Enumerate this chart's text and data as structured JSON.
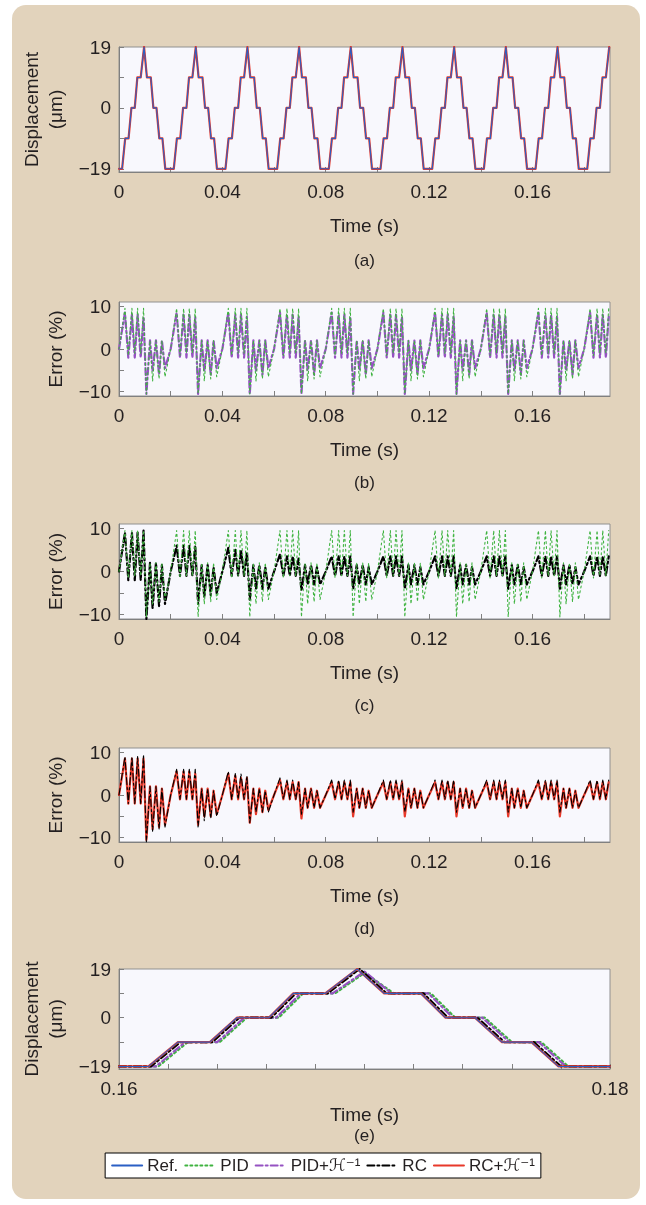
{
  "chart_data": [
    {
      "type": "line",
      "xlabel": "Time (s)",
      "ylabel": "Displacement (μm)",
      "annotations": [
        "(a)"
      ],
      "xlim": [
        0,
        0.19
      ],
      "xticks": [
        0,
        {
          "value": 0.02,
          "label": null
        },
        0.04,
        {
          "value": 0.06,
          "label": null
        },
        0.08,
        {
          "value": 0.1,
          "label": null
        },
        0.12,
        {
          "value": 0.14,
          "label": null
        },
        0.16,
        {
          "value": 0.18,
          "label": null
        }
      ],
      "ylim": [
        -20,
        19
      ],
      "yticks": [
        -19,
        {
          "value": -9.5,
          "label": null
        },
        0,
        {
          "value": 9.5,
          "label": null
        },
        19
      ],
      "x": [
        0,
        0.0012,
        0.0024,
        0.0037,
        0.0048,
        0.0061,
        0.0071,
        0.0084,
        0.0097,
        0.0108,
        0.0123,
        0.0133,
        0.0145,
        0.0156,
        0.0168,
        0.0179,
        0.0212,
        0.0224,
        0.0237,
        0.0248,
        0.0261,
        0.0271,
        0.0284,
        0.0297,
        0.0308,
        0.0323,
        0.0333,
        0.0345,
        0.0356,
        0.0368,
        0.0379,
        0.0412,
        0.0424,
        0.0437,
        0.0448,
        0.0461,
        0.0471,
        0.0484,
        0.0497,
        0.0508,
        0.0523,
        0.0533,
        0.0545,
        0.0556,
        0.0568,
        0.0579,
        0.0612,
        0.0624,
        0.0637,
        0.0648,
        0.0661,
        0.0671,
        0.0684,
        0.0697,
        0.0708,
        0.0723,
        0.0733,
        0.0745,
        0.0756,
        0.0768,
        0.0779,
        0.0812,
        0.0824,
        0.0837,
        0.0848,
        0.0861,
        0.0871,
        0.0884,
        0.0897,
        0.0908,
        0.0923,
        0.0933,
        0.0945,
        0.0956,
        0.0968,
        0.0979,
        0.1012,
        0.1024,
        0.1037,
        0.1048,
        0.1061,
        0.1071,
        0.1084,
        0.1097,
        0.1108,
        0.1123,
        0.1133,
        0.1145,
        0.1156,
        0.1168,
        0.1179,
        0.1212,
        0.1224,
        0.1237,
        0.1248,
        0.1261,
        0.1271,
        0.1284,
        0.1297,
        0.1308,
        0.1323,
        0.1333,
        0.1345,
        0.1356,
        0.1368,
        0.1379,
        0.1412,
        0.1424,
        0.1437,
        0.1448,
        0.1461,
        0.1471,
        0.1484,
        0.1497,
        0.1508,
        0.1523,
        0.1533,
        0.1545,
        0.1556,
        0.1568,
        0.1579,
        0.1612,
        0.1624,
        0.1637,
        0.1648,
        0.1661,
        0.1671,
        0.1684,
        0.1697,
        0.1708,
        0.1723,
        0.1733,
        0.1745,
        0.1756,
        0.1768,
        0.1779,
        0.1812,
        0.1824,
        0.1837,
        0.1848,
        0.1861,
        0.1871,
        0.1884,
        0.1897
      ],
      "series": [
        {
          "color": "#2a5fc4",
          "line_style": "solid",
          "values": [
            -19,
            -19,
            -9.5,
            -9.5,
            0,
            0,
            9.5,
            9.5,
            19,
            9.5,
            9.5,
            0,
            0,
            -9.5,
            -9.5,
            -19,
            -19,
            -9.5,
            -9.5,
            0,
            0,
            9.5,
            9.5,
            19,
            9.5,
            9.5,
            0,
            0,
            -9.5,
            -9.5,
            -19,
            -19,
            -9.5,
            -9.5,
            0,
            0,
            9.5,
            9.5,
            19,
            9.5,
            9.5,
            0,
            0,
            -9.5,
            -9.5,
            -19,
            -19,
            -9.5,
            -9.5,
            0,
            0,
            9.5,
            9.5,
            19,
            9.5,
            9.5,
            0,
            0,
            -9.5,
            -9.5,
            -19,
            -19,
            -9.5,
            -9.5,
            0,
            0,
            9.5,
            9.5,
            19,
            9.5,
            9.5,
            0,
            0,
            -9.5,
            -9.5,
            -19,
            -19,
            -9.5,
            -9.5,
            0,
            0,
            9.5,
            9.5,
            19,
            9.5,
            9.5,
            0,
            0,
            -9.5,
            -9.5,
            -19,
            -19,
            -9.5,
            -9.5,
            0,
            0,
            9.5,
            9.5,
            19,
            9.5,
            9.5,
            0,
            0,
            -9.5,
            -9.5,
            -19,
            -19,
            -9.5,
            -9.5,
            0,
            0,
            9.5,
            9.5,
            19,
            9.5,
            9.5,
            0,
            0,
            -9.5,
            -9.5,
            -19,
            -19,
            -9.5,
            -9.5,
            0,
            0,
            9.5,
            9.5,
            19,
            9.5,
            9.5,
            0,
            0,
            -9.5,
            -9.5,
            -19,
            -19,
            -9.5,
            -9.5,
            0,
            0,
            9.5,
            9.5,
            19
          ]
        },
        {
          "color": "#e8392a",
          "line_style": "solid",
          "values": [
            -19,
            -19,
            -9.5,
            -9.5,
            0,
            0,
            9.5,
            9.5,
            19,
            9.5,
            9.5,
            0,
            0,
            -9.5,
            -9.5,
            -19,
            -19,
            -9.5,
            -9.5,
            0,
            0,
            9.5,
            9.5,
            19,
            9.5,
            9.5,
            0,
            0,
            -9.5,
            -9.5,
            -19,
            -19,
            -9.5,
            -9.5,
            0,
            0,
            9.5,
            9.5,
            19,
            9.5,
            9.5,
            0,
            0,
            -9.5,
            -9.5,
            -19,
            -19,
            -9.5,
            -9.5,
            0,
            0,
            9.5,
            9.5,
            19,
            9.5,
            9.5,
            0,
            0,
            -9.5,
            -9.5,
            -19,
            -19,
            -9.5,
            -9.5,
            0,
            0,
            9.5,
            9.5,
            19,
            9.5,
            9.5,
            0,
            0,
            -9.5,
            -9.5,
            -19,
            -19,
            -9.5,
            -9.5,
            0,
            0,
            9.5,
            9.5,
            19,
            9.5,
            9.5,
            0,
            0,
            -9.5,
            -9.5,
            -19,
            -19,
            -9.5,
            -9.5,
            0,
            0,
            9.5,
            9.5,
            19,
            9.5,
            9.5,
            0,
            0,
            -9.5,
            -9.5,
            -19,
            -19,
            -9.5,
            -9.5,
            0,
            0,
            9.5,
            9.5,
            19,
            9.5,
            9.5,
            0,
            0,
            -9.5,
            -9.5,
            -19,
            -19,
            -9.5,
            -9.5,
            0,
            0,
            9.5,
            9.5,
            19,
            9.5,
            9.5,
            0,
            0,
            -9.5,
            -9.5,
            -19,
            -19,
            -9.5,
            -9.5,
            0,
            0,
            9.5,
            9.5,
            19
          ]
        }
      ]
    },
    {
      "type": "line",
      "xlabel": "Time (s)",
      "ylabel": "Error (%)",
      "annotations": [
        "(b)"
      ],
      "xlim": [
        0,
        0.19
      ],
      "xticks": [
        0,
        {
          "value": 0.02,
          "label": null
        },
        0.04,
        {
          "value": 0.06,
          "label": null
        },
        0.08,
        {
          "value": 0.1,
          "label": null
        },
        0.12,
        {
          "value": 0.14,
          "label": null
        },
        0.16,
        {
          "value": 0.18,
          "label": null
        }
      ],
      "ylim": [
        -11,
        11
      ],
      "yticks": [
        -10,
        {
          "value": -5,
          "label": null
        },
        0,
        {
          "value": 5,
          "label": null
        },
        10
      ],
      "x": [
        0,
        0.0023,
        0.0036,
        0.005,
        0.0061,
        0.0072,
        0.0084,
        0.0095,
        0.0106,
        0.012,
        0.013,
        0.0143,
        0.0155,
        0.0166,
        0.0178,
        0.02,
        0.0223,
        0.0236,
        0.025,
        0.0261,
        0.0272,
        0.0284,
        0.0295,
        0.0306,
        0.032,
        0.033,
        0.0343,
        0.0355,
        0.0366,
        0.0378,
        0.04,
        0.0423,
        0.0436,
        0.045,
        0.0461,
        0.0472,
        0.0484,
        0.0495,
        0.0506,
        0.052,
        0.053,
        0.0543,
        0.0555,
        0.0566,
        0.0578,
        0.06,
        0.0623,
        0.0636,
        0.065,
        0.0661,
        0.0672,
        0.0684,
        0.0695,
        0.0706,
        0.072,
        0.073,
        0.0743,
        0.0755,
        0.0766,
        0.0778,
        0.08,
        0.0823,
        0.0836,
        0.085,
        0.0861,
        0.0872,
        0.0884,
        0.0895,
        0.0906,
        0.092,
        0.093,
        0.0943,
        0.0955,
        0.0966,
        0.0978,
        0.1,
        0.1023,
        0.1036,
        0.105,
        0.1061,
        0.1072,
        0.1084,
        0.1095,
        0.1106,
        0.112,
        0.113,
        0.1143,
        0.1155,
        0.1166,
        0.1178,
        0.12,
        0.1223,
        0.1236,
        0.125,
        0.1261,
        0.1272,
        0.1284,
        0.1295,
        0.1306,
        0.132,
        0.133,
        0.1343,
        0.1355,
        0.1366,
        0.1378,
        0.14,
        0.1423,
        0.1436,
        0.145,
        0.1461,
        0.1472,
        0.1484,
        0.1495,
        0.1506,
        0.152,
        0.153,
        0.1543,
        0.1555,
        0.1566,
        0.1578,
        0.16,
        0.1623,
        0.1636,
        0.165,
        0.1661,
        0.1672,
        0.1684,
        0.1695,
        0.1706,
        0.172,
        0.173,
        0.1743,
        0.1755,
        0.1766,
        0.1778,
        0.18,
        0.1823,
        0.1836,
        0.185,
        0.1861,
        0.1872,
        0.1884,
        0.1895
      ],
      "series": [
        {
          "color": "#3fb340",
          "line_style": "dotted",
          "values": [
            0,
            9.5,
            -1.5,
            9.5,
            -1,
            9.5,
            -1,
            9.5,
            -10.5,
            2,
            -7.5,
            2,
            -7,
            2,
            -6.5,
            0,
            9.5,
            -1.5,
            9.5,
            -1,
            9.5,
            -1,
            9.5,
            -10.5,
            2,
            -7.5,
            2,
            -7,
            2,
            -6.5,
            0,
            9.5,
            -1.5,
            9.5,
            -1,
            9.5,
            -1,
            9.5,
            -10.5,
            2,
            -7.5,
            2,
            -7,
            2,
            -6.5,
            0,
            9.5,
            -1.5,
            9.5,
            -1,
            9.5,
            -1,
            9.5,
            -10.5,
            2,
            -7.5,
            2,
            -7,
            2,
            -6.5,
            0,
            9.5,
            -1.5,
            9.5,
            -1,
            9.5,
            -1,
            9.5,
            -10.5,
            2,
            -7.5,
            2,
            -7,
            2,
            -6.5,
            0,
            9.5,
            -1.5,
            9.5,
            -1,
            9.5,
            -1,
            9.5,
            -10.5,
            2,
            -7.5,
            2,
            -7,
            2,
            -6.5,
            0,
            9.5,
            -1.5,
            9.5,
            -1,
            9.5,
            -1,
            9.5,
            -10.5,
            2,
            -7.5,
            2,
            -7,
            2,
            -6.5,
            0,
            9.5,
            -1.5,
            9.5,
            -1,
            9.5,
            -1,
            9.5,
            -10.5,
            2,
            -7.5,
            2,
            -7,
            2,
            -6.5,
            0,
            9.5,
            -1.5,
            9.5,
            -1,
            9.5,
            -1,
            9.5,
            -10.5,
            2,
            -7.5,
            2,
            -7,
            2,
            -6.5,
            0,
            9.5,
            -1.5,
            9.5,
            -1,
            9.5,
            -1,
            9.5
          ]
        },
        {
          "color": "#9552c2",
          "line_style": "dashed",
          "values": [
            0,
            8.5,
            -2,
            8,
            -2,
            8,
            -2,
            7.5,
            -10.5,
            2,
            -5,
            2,
            -6,
            2,
            -4.5,
            0,
            8.5,
            -2,
            8,
            -2,
            8,
            -2,
            7.5,
            -10.5,
            2,
            -5,
            2,
            -6,
            2,
            -4.5,
            0,
            8.5,
            -2,
            8,
            -2,
            8,
            -2,
            7.5,
            -10.5,
            2,
            -5,
            2,
            -6,
            2,
            -4.5,
            0,
            8.5,
            -2,
            8,
            -2,
            8,
            -2,
            7.5,
            -10.5,
            2,
            -5,
            2,
            -6,
            2,
            -4.5,
            0,
            8.5,
            -2,
            8,
            -2,
            8,
            -2,
            7.5,
            -10.5,
            2,
            -5,
            2,
            -6,
            2,
            -4.5,
            0,
            8.5,
            -2,
            8,
            -2,
            8,
            -2,
            7.5,
            -10.5,
            2,
            -5,
            2,
            -6,
            2,
            -4.5,
            0,
            8.5,
            -2,
            8,
            -2,
            8,
            -2,
            7.5,
            -10.5,
            2,
            -5,
            2,
            -6,
            2,
            -4.5,
            0,
            8.5,
            -2,
            8,
            -2,
            8,
            -2,
            7.5,
            -10.5,
            2,
            -5,
            2,
            -6,
            2,
            -4.5,
            0,
            8.5,
            -2,
            8,
            -2,
            8,
            -2,
            7.5,
            -10.5,
            2,
            -5,
            2,
            -6,
            2,
            -4.5,
            0,
            8.5,
            -2,
            8,
            -2,
            8,
            -2,
            7.5
          ]
        }
      ]
    },
    {
      "type": "line",
      "xlabel": "Time (s)",
      "ylabel": "Error (%)",
      "annotations": [
        "(c)"
      ],
      "xlim": [
        0,
        0.19
      ],
      "xticks": [
        0,
        {
          "value": 0.02,
          "label": null
        },
        0.04,
        {
          "value": 0.06,
          "label": null
        },
        0.08,
        {
          "value": 0.1,
          "label": null
        },
        0.12,
        {
          "value": 0.14,
          "label": null
        },
        0.16,
        {
          "value": 0.18,
          "label": null
        }
      ],
      "ylim": [
        -11,
        11
      ],
      "yticks": [
        -10,
        {
          "value": -5,
          "label": null
        },
        0,
        {
          "value": 5,
          "label": null
        },
        10
      ],
      "x": [
        0,
        0.0023,
        0.0036,
        0.005,
        0.0061,
        0.0072,
        0.0084,
        0.0095,
        0.0106,
        0.012,
        0.013,
        0.0143,
        0.0155,
        0.0166,
        0.0178,
        0.02,
        0.0223,
        0.0236,
        0.025,
        0.0261,
        0.0272,
        0.0284,
        0.0295,
        0.0306,
        0.032,
        0.033,
        0.0343,
        0.0355,
        0.0366,
        0.0378,
        0.04,
        0.0423,
        0.0436,
        0.045,
        0.0461,
        0.0472,
        0.0484,
        0.0495,
        0.0506,
        0.052,
        0.053,
        0.0543,
        0.0555,
        0.0566,
        0.0578,
        0.06,
        0.0623,
        0.0636,
        0.065,
        0.0661,
        0.0672,
        0.0684,
        0.0695,
        0.0706,
        0.072,
        0.073,
        0.0743,
        0.0755,
        0.0766,
        0.0778,
        0.08,
        0.0823,
        0.0836,
        0.085,
        0.0861,
        0.0872,
        0.0884,
        0.0895,
        0.0906,
        0.092,
        0.093,
        0.0943,
        0.0955,
        0.0966,
        0.0978,
        0.1,
        0.1023,
        0.1036,
        0.105,
        0.1061,
        0.1072,
        0.1084,
        0.1095,
        0.1106,
        0.112,
        0.113,
        0.1143,
        0.1155,
        0.1166,
        0.1178,
        0.12,
        0.1223,
        0.1236,
        0.125,
        0.1261,
        0.1272,
        0.1284,
        0.1295,
        0.1306,
        0.132,
        0.133,
        0.1343,
        0.1355,
        0.1366,
        0.1378,
        0.14,
        0.1423,
        0.1436,
        0.145,
        0.1461,
        0.1472,
        0.1484,
        0.1495,
        0.1506,
        0.152,
        0.153,
        0.1543,
        0.1555,
        0.1566,
        0.1578,
        0.16,
        0.1623,
        0.1636,
        0.165,
        0.1661,
        0.1672,
        0.1684,
        0.1695,
        0.1706,
        0.172,
        0.173,
        0.1743,
        0.1755,
        0.1766,
        0.1778,
        0.18,
        0.1823,
        0.1836,
        0.185,
        0.1861,
        0.1872,
        0.1884,
        0.1895
      ],
      "series": [
        {
          "color": "#3fb340",
          "line_style": "dotted",
          "values": [
            0,
            9.5,
            -1.5,
            9.5,
            -1,
            9.5,
            -1,
            9.5,
            -10.5,
            2,
            -7.5,
            2,
            -7,
            2,
            -6.5,
            0,
            9.5,
            -1.5,
            9.5,
            -1,
            9.5,
            -1,
            9.5,
            -10.5,
            2,
            -7.5,
            2,
            -7,
            2,
            -6.5,
            0,
            9.5,
            -1.5,
            9.5,
            -1,
            9.5,
            -1,
            9.5,
            -10.5,
            2,
            -7.5,
            2,
            -7,
            2,
            -6.5,
            0,
            9.5,
            -1.5,
            9.5,
            -1,
            9.5,
            -1,
            9.5,
            -10.5,
            2,
            -7.5,
            2,
            -7,
            2,
            -6.5,
            0,
            9.5,
            -1.5,
            9.5,
            -1,
            9.5,
            -1,
            9.5,
            -10.5,
            2,
            -7.5,
            2,
            -7,
            2,
            -6.5,
            0,
            9.5,
            -1.5,
            9.5,
            -1,
            9.5,
            -1,
            9.5,
            -10.5,
            2,
            -7.5,
            2,
            -7,
            2,
            -6.5,
            0,
            9.5,
            -1.5,
            9.5,
            -1,
            9.5,
            -1,
            9.5,
            -10.5,
            2,
            -7.5,
            2,
            -7,
            2,
            -6.5,
            0,
            9.5,
            -1.5,
            9.5,
            -1,
            9.5,
            -1,
            9.5,
            -10.5,
            2,
            -7.5,
            2,
            -7,
            2,
            -6.5,
            0,
            9.5,
            -1.5,
            9.5,
            -1,
            9.5,
            -1,
            9.5,
            -10.5,
            2,
            -7.5,
            2,
            -7,
            2,
            -6.5,
            0,
            9.5,
            -1.5,
            9.5,
            -1,
            9.5,
            -1,
            9.5
          ]
        },
        {
          "color": "#000000",
          "line_style": "dashed",
          "values": [
            0,
            9,
            -2,
            9,
            -2,
            9,
            -2,
            9.5,
            -11,
            2,
            -8.5,
            2,
            -8,
            1.5,
            -7.5,
            0,
            6,
            -1,
            6,
            -1,
            6,
            -1,
            6,
            -7.5,
            1.5,
            -6,
            1.5,
            -5.5,
            1,
            -5,
            0,
            5.5,
            -1,
            5,
            -1,
            5,
            -1,
            4.5,
            -6.5,
            1.5,
            -4,
            1.5,
            -4,
            1,
            -4,
            0,
            4,
            -1,
            3.5,
            -1,
            3.5,
            -1,
            3,
            -4.5,
            1.5,
            -3,
            1.5,
            -3,
            1,
            -3,
            0,
            3.5,
            -1,
            3.5,
            -1,
            3.5,
            -1,
            3.5,
            -4,
            1.5,
            -3,
            1.5,
            -3,
            1,
            -3,
            0,
            3.5,
            -1,
            3.5,
            -1,
            3.5,
            -1,
            3.5,
            -4,
            1.5,
            -3,
            1.5,
            -3,
            1,
            -3,
            0,
            3.5,
            -1,
            3.5,
            -1,
            3.5,
            -1,
            3.5,
            -4,
            1.5,
            -3,
            1.5,
            -3,
            1,
            -3,
            0,
            3.5,
            -1,
            3.5,
            -1,
            3.5,
            -1,
            3.5,
            -4,
            1.5,
            -3,
            1.5,
            -3,
            1,
            -3,
            0,
            3.5,
            -1,
            3.5,
            -1,
            3.5,
            -1,
            3.5,
            -4,
            1.5,
            -3,
            1.5,
            -3,
            1,
            -3,
            0,
            3.5,
            -1,
            3.5,
            -1,
            3.5,
            -1,
            3.5
          ]
        }
      ]
    },
    {
      "type": "line",
      "xlabel": "Time (s)",
      "ylabel": "Error (%)",
      "annotations": [
        "(d)"
      ],
      "xlim": [
        0,
        0.19
      ],
      "xticks": [
        0,
        {
          "value": 0.02,
          "label": null
        },
        0.04,
        {
          "value": 0.06,
          "label": null
        },
        0.08,
        {
          "value": 0.1,
          "label": null
        },
        0.12,
        {
          "value": 0.14,
          "label": null
        },
        0.16,
        {
          "value": 0.18,
          "label": null
        }
      ],
      "ylim": [
        -11,
        11
      ],
      "yticks": [
        -10,
        {
          "value": -5,
          "label": null
        },
        0,
        {
          "value": 5,
          "label": null
        },
        10
      ],
      "x": [
        0,
        0.0023,
        0.0036,
        0.005,
        0.0061,
        0.0072,
        0.0084,
        0.0095,
        0.0106,
        0.012,
        0.013,
        0.0143,
        0.0155,
        0.0166,
        0.0178,
        0.02,
        0.0223,
        0.0236,
        0.025,
        0.0261,
        0.0272,
        0.0284,
        0.0295,
        0.0306,
        0.032,
        0.033,
        0.0343,
        0.0355,
        0.0366,
        0.0378,
        0.04,
        0.0423,
        0.0436,
        0.045,
        0.0461,
        0.0472,
        0.0484,
        0.0495,
        0.0506,
        0.052,
        0.053,
        0.0543,
        0.0555,
        0.0566,
        0.0578,
        0.06,
        0.0623,
        0.0636,
        0.065,
        0.0661,
        0.0672,
        0.0684,
        0.0695,
        0.0706,
        0.072,
        0.073,
        0.0743,
        0.0755,
        0.0766,
        0.0778,
        0.08,
        0.0823,
        0.0836,
        0.085,
        0.0861,
        0.0872,
        0.0884,
        0.0895,
        0.0906,
        0.092,
        0.093,
        0.0943,
        0.0955,
        0.0966,
        0.0978,
        0.1,
        0.1023,
        0.1036,
        0.105,
        0.1061,
        0.1072,
        0.1084,
        0.1095,
        0.1106,
        0.112,
        0.113,
        0.1143,
        0.1155,
        0.1166,
        0.1178,
        0.12,
        0.1223,
        0.1236,
        0.125,
        0.1261,
        0.1272,
        0.1284,
        0.1295,
        0.1306,
        0.132,
        0.133,
        0.1343,
        0.1355,
        0.1366,
        0.1378,
        0.14,
        0.1423,
        0.1436,
        0.145,
        0.1461,
        0.1472,
        0.1484,
        0.1495,
        0.1506,
        0.152,
        0.153,
        0.1543,
        0.1555,
        0.1566,
        0.1578,
        0.16,
        0.1623,
        0.1636,
        0.165,
        0.1661,
        0.1672,
        0.1684,
        0.1695,
        0.1706,
        0.172,
        0.173,
        0.1743,
        0.1755,
        0.1766,
        0.1778,
        0.18,
        0.1823,
        0.1836,
        0.185,
        0.1861,
        0.1872,
        0.1884,
        0.1895
      ],
      "series": [
        {
          "color": "#000000",
          "line_style": "dashed",
          "values": [
            0,
            9,
            -2,
            9,
            -2,
            9,
            -2,
            9.5,
            -11,
            2,
            -8.5,
            2,
            -8,
            1.5,
            -7.5,
            0,
            6,
            -1,
            6,
            -1,
            6,
            -1,
            6,
            -7.5,
            1.5,
            -6,
            1.5,
            -5.5,
            1,
            -5,
            0,
            5.5,
            -1,
            5,
            -1,
            5,
            -1,
            4.5,
            -6.5,
            1.5,
            -4,
            1.5,
            -4,
            1,
            -4,
            0,
            4,
            -1,
            3.5,
            -1,
            3.5,
            -1,
            3,
            -4.5,
            1.5,
            -3,
            1.5,
            -3,
            1,
            -3,
            0,
            3.5,
            -1,
            3.5,
            -1,
            3.5,
            -1,
            3.5,
            -4,
            1.5,
            -3,
            1.5,
            -3,
            1,
            -3,
            0,
            3.5,
            -1,
            3.5,
            -1,
            3.5,
            -1,
            3.5,
            -4,
            1.5,
            -3,
            1.5,
            -3,
            1,
            -3,
            0,
            3.5,
            -1,
            3.5,
            -1,
            3.5,
            -1,
            3.5,
            -4,
            1.5,
            -3,
            1.5,
            -3,
            1,
            -3,
            0,
            3.5,
            -1,
            3.5,
            -1,
            3.5,
            -1,
            3.5,
            -4,
            1.5,
            -3,
            1.5,
            -3,
            1,
            -3,
            0,
            3.5,
            -1,
            3.5,
            -1,
            3.5,
            -1,
            3.5,
            -4,
            1.5,
            -3,
            1.5,
            -3,
            1,
            -3,
            0,
            3.5,
            -1,
            3.5,
            -1,
            3.5,
            -1,
            3.5
          ]
        },
        {
          "color": "#e8392a",
          "line_style": "solid",
          "values": [
            0,
            8.5,
            -2,
            8.5,
            -2,
            8.5,
            -2,
            8.5,
            -10.5,
            2,
            -8,
            2,
            -7.5,
            1.5,
            -7,
            0,
            5.5,
            -1,
            5.5,
            -1,
            5.5,
            -1,
            5,
            -7,
            1.5,
            -5,
            1.5,
            -5,
            1,
            -4.5,
            0,
            5,
            -1,
            4.5,
            -1,
            4,
            -1,
            4,
            -6.5,
            1.5,
            -4.5,
            1.5,
            -4,
            1,
            -3.5,
            0,
            3.5,
            -1,
            3,
            -1,
            3,
            -1,
            3,
            -5.5,
            1.5,
            -3,
            1.5,
            -3,
            1,
            -3,
            0,
            3,
            -1,
            3,
            -1,
            3,
            -1,
            3,
            -5,
            1.5,
            -3,
            1.5,
            -3,
            1,
            -3,
            0,
            3,
            -1,
            3,
            -1,
            3,
            -1,
            3,
            -5,
            1.5,
            -3,
            1.5,
            -3,
            1,
            -3,
            0,
            3,
            -1,
            3,
            -1,
            3,
            -1,
            3,
            -5,
            1.5,
            -3,
            1.5,
            -3,
            1,
            -3,
            0,
            3,
            -1,
            3,
            -1,
            3,
            -1,
            3,
            -5,
            1.5,
            -3,
            1.5,
            -3,
            1,
            -3,
            0,
            3,
            -1,
            3,
            -1,
            3,
            -1,
            3,
            -5,
            1.5,
            -3,
            1.5,
            -3,
            1,
            -3,
            0,
            3,
            -1,
            3,
            -1,
            3,
            -1,
            3
          ]
        }
      ]
    },
    {
      "type": "line",
      "xlabel": "Time (s)",
      "ylabel": "Displacement (μm)",
      "annotations": [
        "(e)"
      ],
      "legend": "bottom",
      "xlim": [
        0.16,
        0.18
      ],
      "xticks": [
        0.16,
        {
          "value": 0.162,
          "label": null
        },
        {
          "value": 0.164,
          "label": null
        },
        {
          "value": 0.166,
          "label": null
        },
        {
          "value": 0.168,
          "label": null
        },
        {
          "value": 0.17,
          "label": null
        },
        {
          "value": 0.172,
          "label": null
        },
        {
          "value": 0.174,
          "label": null
        },
        {
          "value": 0.176,
          "label": null
        },
        {
          "value": 0.178,
          "label": null
        },
        0.18
      ],
      "ylim": [
        -20,
        19
      ],
      "yticks": [
        -19,
        {
          "value": -9.5,
          "label": null
        },
        0,
        {
          "value": 9.5,
          "label": null
        },
        19
      ],
      "series": [
        {
          "name": "Ref.",
          "color": "#2a5fc4",
          "line_style": "solid",
          "x": [
            0.16,
            0.1612,
            0.1624,
            0.1637,
            0.1648,
            0.1661,
            0.1671,
            0.1684,
            0.1697,
            0.1708,
            0.1723,
            0.1733,
            0.1745,
            0.1756,
            0.1768,
            0.1779,
            0.18
          ],
          "values": [
            -19,
            -19,
            -9.5,
            -9.5,
            0,
            0,
            9.5,
            9.5,
            19,
            9.5,
            9.5,
            0,
            0,
            -9.5,
            -9.5,
            -19,
            -19
          ]
        },
        {
          "name": "PID",
          "color": "#3fb340",
          "line_style": "dotted",
          "x": [
            0.16,
            0.1616,
            0.1628,
            0.1641,
            0.1652,
            0.1665,
            0.1675,
            0.1688,
            0.17,
            0.1712,
            0.1727,
            0.1737,
            0.1749,
            0.176,
            0.1772,
            0.1783,
            0.18
          ],
          "values": [
            -19,
            -19,
            -9.5,
            -9.5,
            0,
            0,
            9.5,
            9.5,
            17.5,
            9.5,
            9.5,
            0,
            0,
            -9.5,
            -9.5,
            -19,
            -19
          ]
        },
        {
          "name": "PID+ℋ⁻¹",
          "color": "#9552c2",
          "line_style": "dashed",
          "x": [
            0.16,
            0.1615,
            0.1627,
            0.164,
            0.1651,
            0.1664,
            0.1674,
            0.1687,
            0.17,
            0.1711,
            0.1726,
            0.1736,
            0.1748,
            0.1759,
            0.1771,
            0.1782,
            0.18
          ],
          "values": [
            -19,
            -19,
            -9.5,
            -9.5,
            0,
            0,
            9.5,
            9.5,
            18,
            9.5,
            9.5,
            0,
            0,
            -9.5,
            -9.5,
            -19,
            -19
          ]
        },
        {
          "name": "RC",
          "color": "#000000",
          "line_style": "dashed",
          "x": [
            0.16,
            0.1613,
            0.1625,
            0.1638,
            0.1649,
            0.1662,
            0.1672,
            0.1685,
            0.1698,
            0.1709,
            0.1724,
            0.1734,
            0.1746,
            0.1757,
            0.1769,
            0.178,
            0.18
          ],
          "values": [
            -19,
            -19,
            -9.5,
            -9.5,
            0,
            0,
            9.5,
            9.5,
            19,
            9.5,
            9.5,
            0,
            0,
            -9.5,
            -9.5,
            -19,
            -19
          ]
        },
        {
          "name": "RC+ℋ⁻¹",
          "color": "#e8392a",
          "line_style": "solid",
          "x": [
            0.16,
            0.1612,
            0.1624,
            0.1637,
            0.1648,
            0.1661,
            0.1671,
            0.1684,
            0.1697,
            0.1708,
            0.1723,
            0.1733,
            0.1745,
            0.1756,
            0.1768,
            0.1779,
            0.18
          ],
          "values": [
            -19,
            -19,
            -9.5,
            -9.5,
            0,
            0,
            9.5,
            9.5,
            19,
            9.5,
            9.5,
            0,
            0,
            -9.5,
            -9.5,
            -19,
            -19
          ]
        }
      ]
    }
  ]
}
